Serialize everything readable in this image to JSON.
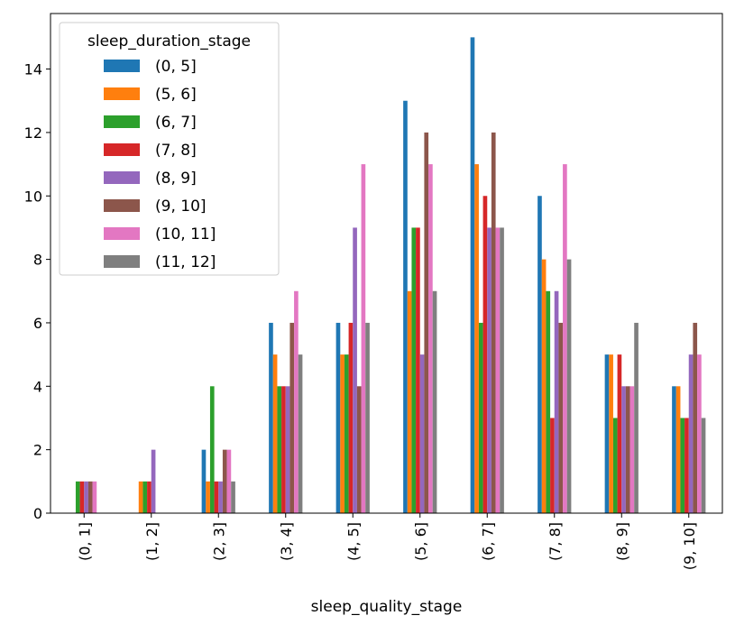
{
  "chart_data": {
    "type": "bar",
    "xlabel": "sleep_quality_stage",
    "ylabel": "",
    "ylim": [
      0,
      15.75
    ],
    "yticks": [
      0,
      2,
      4,
      6,
      8,
      10,
      12,
      14
    ],
    "grid": false,
    "legend_position": "top-left",
    "legend_title": "sleep_duration_stage",
    "categories": [
      "(0, 1]",
      "(1, 2]",
      "(2, 3]",
      "(3, 4]",
      "(4, 5]",
      "(5, 6]",
      "(6, 7]",
      "(7, 8]",
      "(8, 9]",
      "(9, 10]"
    ],
    "series": [
      {
        "name": "(0, 5]",
        "color": "#1f77b4",
        "values": [
          0,
          0,
          2,
          6,
          6,
          13,
          15,
          10,
          5,
          4
        ]
      },
      {
        "name": "(5, 6]",
        "color": "#ff7f0e",
        "values": [
          0,
          1,
          1,
          5,
          5,
          7,
          11,
          8,
          5,
          4
        ]
      },
      {
        "name": "(6, 7]",
        "color": "#2ca02c",
        "values": [
          1,
          1,
          4,
          4,
          5,
          9,
          6,
          7,
          3,
          3
        ]
      },
      {
        "name": "(7, 8]",
        "color": "#d62728",
        "values": [
          1,
          1,
          1,
          4,
          6,
          9,
          10,
          3,
          5,
          3
        ]
      },
      {
        "name": "(8, 9]",
        "color": "#9467bd",
        "values": [
          1,
          2,
          1,
          4,
          9,
          5,
          9,
          7,
          4,
          5
        ]
      },
      {
        "name": "(9, 10]",
        "color": "#8c564b",
        "values": [
          1,
          0,
          2,
          6,
          4,
          12,
          12,
          6,
          4,
          6
        ]
      },
      {
        "name": "(10, 11]",
        "color": "#e377c2",
        "values": [
          1,
          0,
          2,
          7,
          11,
          11,
          9,
          11,
          4,
          5
        ]
      },
      {
        "name": "(11, 12]",
        "color": "#7f7f7f",
        "values": [
          0,
          0,
          1,
          5,
          6,
          7,
          9,
          8,
          6,
          3
        ]
      }
    ]
  }
}
